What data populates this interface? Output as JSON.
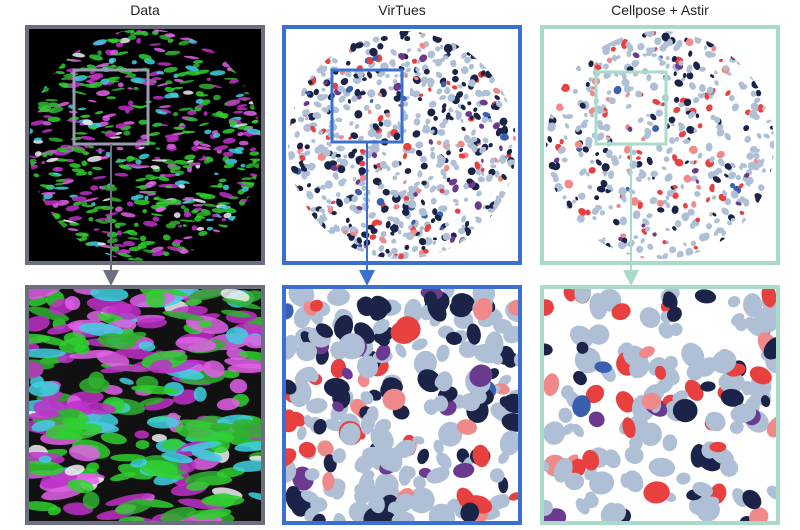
{
  "panels": [
    {
      "title": "Data"
    },
    {
      "title": "VirTues"
    },
    {
      "title": "Cellpose + Astir"
    }
  ]
}
